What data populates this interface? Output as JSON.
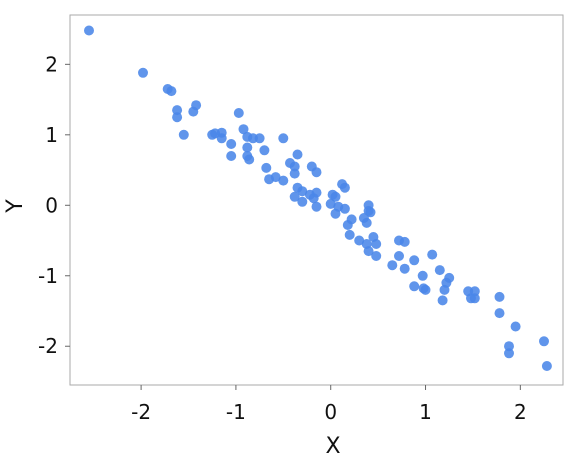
{
  "chart_data": {
    "type": "scatter",
    "title": "",
    "xlabel": "X",
    "ylabel": "Y",
    "xlim": [
      -2.75,
      2.45
    ],
    "ylim": [
      -2.55,
      2.7
    ],
    "xticks": [
      -2,
      -1,
      0,
      1,
      2
    ],
    "yticks": [
      -2,
      -1,
      0,
      1,
      2
    ],
    "grid": false,
    "legend": "none",
    "marker_color": "#4a86e8",
    "points": [
      [
        -2.55,
        2.48
      ],
      [
        -1.98,
        1.88
      ],
      [
        -1.72,
        1.65
      ],
      [
        -1.68,
        1.62
      ],
      [
        -1.62,
        1.35
      ],
      [
        -1.62,
        1.25
      ],
      [
        -1.45,
        1.33
      ],
      [
        -1.42,
        1.42
      ],
      [
        -1.55,
        1.0
      ],
      [
        -1.25,
        1.0
      ],
      [
        -1.22,
        1.02
      ],
      [
        -1.15,
        1.03
      ],
      [
        -1.15,
        0.95
      ],
      [
        -1.05,
        0.87
      ],
      [
        -1.05,
        0.7
      ],
      [
        -0.97,
        1.31
      ],
      [
        -0.92,
        1.08
      ],
      [
        -0.88,
        0.97
      ],
      [
        -0.82,
        0.95
      ],
      [
        -0.75,
        0.95
      ],
      [
        -0.88,
        0.82
      ],
      [
        -0.88,
        0.7
      ],
      [
        -0.86,
        0.65
      ],
      [
        -0.7,
        0.78
      ],
      [
        -0.68,
        0.53
      ],
      [
        -0.65,
        0.37
      ],
      [
        -0.58,
        0.4
      ],
      [
        -0.5,
        0.95
      ],
      [
        -0.5,
        0.35
      ],
      [
        -0.43,
        0.6
      ],
      [
        -0.38,
        0.55
      ],
      [
        -0.35,
        0.72
      ],
      [
        -0.38,
        0.45
      ],
      [
        -0.35,
        0.25
      ],
      [
        -0.38,
        0.12
      ],
      [
        -0.3,
        0.2
      ],
      [
        -0.3,
        0.05
      ],
      [
        -0.2,
        0.55
      ],
      [
        -0.15,
        0.47
      ],
      [
        -0.22,
        0.15
      ],
      [
        -0.18,
        0.1
      ],
      [
        -0.15,
        0.18
      ],
      [
        -0.15,
        -0.02
      ],
      [
        0.0,
        0.02
      ],
      [
        0.02,
        0.15
      ],
      [
        0.05,
        0.12
      ],
      [
        0.08,
        -0.02
      ],
      [
        0.05,
        -0.12
      ],
      [
        0.12,
        0.3
      ],
      [
        0.15,
        0.25
      ],
      [
        0.15,
        -0.05
      ],
      [
        0.18,
        -0.28
      ],
      [
        0.2,
        -0.42
      ],
      [
        0.22,
        -0.2
      ],
      [
        0.3,
        -0.5
      ],
      [
        0.35,
        -0.18
      ],
      [
        0.38,
        -0.25
      ],
      [
        0.4,
        -0.08
      ],
      [
        0.4,
        0.0
      ],
      [
        0.42,
        -0.1
      ],
      [
        0.38,
        -0.55
      ],
      [
        0.4,
        -0.65
      ],
      [
        0.45,
        -0.45
      ],
      [
        0.48,
        -0.72
      ],
      [
        0.48,
        -0.55
      ],
      [
        0.65,
        -0.85
      ],
      [
        0.72,
        -0.72
      ],
      [
        0.72,
        -0.5
      ],
      [
        0.78,
        -0.52
      ],
      [
        0.78,
        -0.9
      ],
      [
        0.88,
        -0.78
      ],
      [
        0.88,
        -1.15
      ],
      [
        0.97,
        -1.0
      ],
      [
        0.98,
        -1.18
      ],
      [
        1.0,
        -1.2
      ],
      [
        1.07,
        -0.7
      ],
      [
        1.15,
        -0.92
      ],
      [
        1.18,
        -1.35
      ],
      [
        1.2,
        -1.2
      ],
      [
        1.22,
        -1.1
      ],
      [
        1.25,
        -1.03
      ],
      [
        1.45,
        -1.22
      ],
      [
        1.48,
        -1.32
      ],
      [
        1.52,
        -1.22
      ],
      [
        1.52,
        -1.32
      ],
      [
        1.78,
        -1.3
      ],
      [
        1.78,
        -1.53
      ],
      [
        1.88,
        -2.0
      ],
      [
        1.88,
        -2.1
      ],
      [
        1.95,
        -1.72
      ],
      [
        2.25,
        -1.93
      ],
      [
        2.28,
        -2.28
      ]
    ]
  }
}
